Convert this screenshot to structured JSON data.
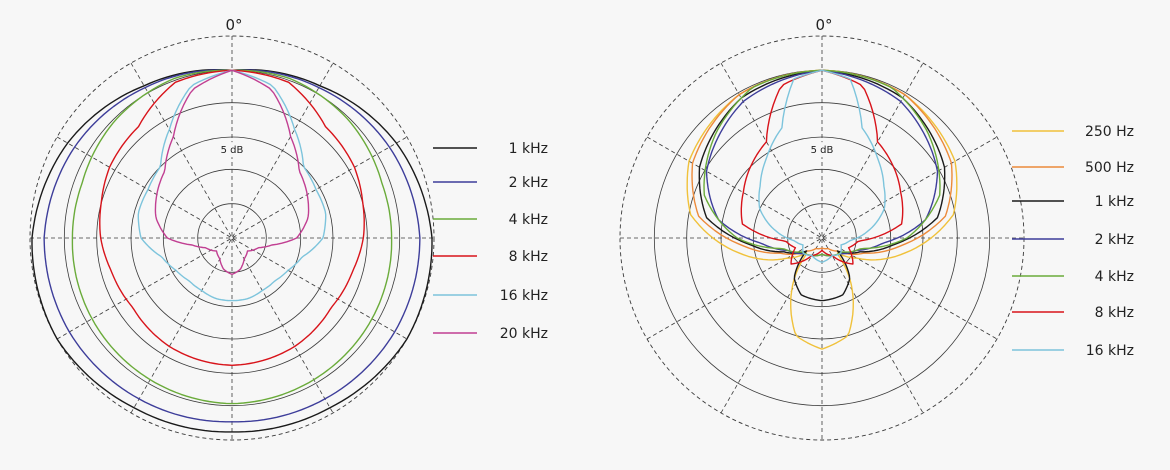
{
  "chart_data": [
    {
      "type": "polar",
      "angle_label": "0°",
      "ring_label": "5 dB",
      "legend": [
        {
          "name": "1 kHz",
          "color": "#1a1a1a"
        },
        {
          "name": "2 kHz",
          "color": "#3d3d9a"
        },
        {
          "name": "4 kHz",
          "color": "#6aab3a"
        },
        {
          "name": "8 kHz",
          "color": "#d8131a"
        },
        {
          "name": "16 kHz",
          "color": "#7dc4dc"
        },
        {
          "name": "20 kHz",
          "color": "#c13f92"
        }
      ],
      "series": [
        {
          "name": "1 kHz",
          "color": "#1a1a1a",
          "radius_by_angle": [
            [
              0,
              0.83
            ],
            [
              30,
              0.87
            ],
            [
              60,
              0.94
            ],
            [
              90,
              0.99
            ],
            [
              120,
              1.0
            ],
            [
              150,
              0.97
            ],
            [
              180,
              0.96
            ]
          ]
        },
        {
          "name": "2 kHz",
          "color": "#3d3d9a",
          "radius_by_angle": [
            [
              0,
              0.83
            ],
            [
              30,
              0.86
            ],
            [
              60,
              0.9
            ],
            [
              90,
              0.93
            ],
            [
              120,
              0.93
            ],
            [
              150,
              0.92
            ],
            [
              180,
              0.91
            ]
          ]
        },
        {
          "name": "4 kHz",
          "color": "#6aab3a",
          "radius_by_angle": [
            [
              0,
              0.83
            ],
            [
              20,
              0.84
            ],
            [
              45,
              0.82
            ],
            [
              70,
              0.79
            ],
            [
              90,
              0.79
            ],
            [
              120,
              0.8
            ],
            [
              150,
              0.81
            ],
            [
              180,
              0.82
            ]
          ]
        },
        {
          "name": "8 kHz",
          "color": "#d8131a",
          "radius_by_angle": [
            [
              0,
              0.83
            ],
            [
              20,
              0.82
            ],
            [
              40,
              0.72
            ],
            [
              60,
              0.7
            ],
            [
              75,
              0.67
            ],
            [
              90,
              0.65
            ],
            [
              105,
              0.62
            ],
            [
              125,
              0.6
            ],
            [
              150,
              0.62
            ],
            [
              180,
              0.63
            ]
          ]
        },
        {
          "name": "16 kHz",
          "color": "#7dc4dc",
          "radius_by_angle": [
            [
              0,
              0.83
            ],
            [
              15,
              0.78
            ],
            [
              30,
              0.62
            ],
            [
              45,
              0.5
            ],
            [
              60,
              0.48
            ],
            [
              75,
              0.48
            ],
            [
              90,
              0.45
            ],
            [
              105,
              0.36
            ],
            [
              120,
              0.32
            ],
            [
              135,
              0.3
            ],
            [
              150,
              0.3
            ],
            [
              165,
              0.31
            ],
            [
              180,
              0.31
            ]
          ]
        },
        {
          "name": "20 kHz",
          "color": "#c13f92",
          "radius_by_angle": [
            [
              0,
              0.83
            ],
            [
              15,
              0.76
            ],
            [
              30,
              0.58
            ],
            [
              45,
              0.47
            ],
            [
              60,
              0.43
            ],
            [
              75,
              0.39
            ],
            [
              90,
              0.32
            ],
            [
              100,
              0.2
            ],
            [
              110,
              0.14
            ],
            [
              130,
              0.1
            ],
            [
              150,
              0.12
            ],
            [
              165,
              0.16
            ],
            [
              180,
              0.18
            ]
          ]
        }
      ]
    },
    {
      "type": "polar",
      "angle_label": "0°",
      "ring_label": "5 dB",
      "legend": [
        {
          "name": "250 Hz",
          "color": "#f0c13a"
        },
        {
          "name": "500 Hz",
          "color": "#ec8a3a"
        },
        {
          "name": "1 kHz",
          "color": "#1a1a1a"
        },
        {
          "name": "2 kHz",
          "color": "#3d3d9a"
        },
        {
          "name": "4 kHz",
          "color": "#6aab3a"
        },
        {
          "name": "8 kHz",
          "color": "#d8131a"
        },
        {
          "name": "16 kHz",
          "color": "#7dc4dc"
        }
      ],
      "series": [
        {
          "name": "250 Hz",
          "color": "#f0c13a",
          "radius_by_angle": [
            [
              0,
              0.83
            ],
            [
              30,
              0.82
            ],
            [
              60,
              0.76
            ],
            [
              80,
              0.66
            ],
            [
              100,
              0.42
            ],
            [
              120,
              0.2
            ],
            [
              135,
              0.1
            ],
            [
              150,
              0.3
            ],
            [
              165,
              0.5
            ],
            [
              180,
              0.55
            ]
          ]
        },
        {
          "name": "500 Hz",
          "color": "#ec8a3a",
          "radius_by_angle": [
            [
              0,
              0.83
            ],
            [
              30,
              0.82
            ],
            [
              60,
              0.74
            ],
            [
              80,
              0.62
            ],
            [
              95,
              0.4
            ],
            [
              110,
              0.22
            ],
            [
              130,
              0.1
            ],
            [
              150,
              0.06
            ],
            [
              180,
              0.05
            ]
          ]
        },
        {
          "name": "1 kHz",
          "color": "#1a1a1a",
          "radius_by_angle": [
            [
              0,
              0.83
            ],
            [
              30,
              0.8
            ],
            [
              60,
              0.7
            ],
            [
              80,
              0.58
            ],
            [
              95,
              0.36
            ],
            [
              110,
              0.2
            ],
            [
              130,
              0.1
            ],
            [
              145,
              0.24
            ],
            [
              160,
              0.3
            ],
            [
              180,
              0.31
            ]
          ]
        },
        {
          "name": "2 kHz",
          "color": "#3d3d9a",
          "radius_by_angle": [
            [
              0,
              0.83
            ],
            [
              30,
              0.78
            ],
            [
              60,
              0.66
            ],
            [
              80,
              0.52
            ],
            [
              95,
              0.3
            ],
            [
              110,
              0.18
            ],
            [
              130,
              0.12
            ],
            [
              150,
              0.1
            ],
            [
              180,
              0.08
            ]
          ]
        },
        {
          "name": "4 kHz",
          "color": "#6aab3a",
          "radius_by_angle": [
            [
              0,
              0.83
            ],
            [
              25,
              0.82
            ],
            [
              45,
              0.74
            ],
            [
              70,
              0.62
            ],
            [
              90,
              0.42
            ],
            [
              105,
              0.2
            ],
            [
              125,
              0.12
            ],
            [
              150,
              0.1
            ],
            [
              180,
              0.08
            ]
          ]
        },
        {
          "name": "8 kHz",
          "color": "#d8131a",
          "radius_by_angle": [
            [
              0,
              0.83
            ],
            [
              15,
              0.78
            ],
            [
              30,
              0.55
            ],
            [
              45,
              0.5
            ],
            [
              60,
              0.45
            ],
            [
              80,
              0.4
            ],
            [
              95,
              0.18
            ],
            [
              110,
              0.14
            ],
            [
              130,
              0.2
            ],
            [
              150,
              0.1
            ],
            [
              180,
              0.06
            ]
          ]
        },
        {
          "name": "16 kHz",
          "color": "#7dc4dc",
          "radius_by_angle": [
            [
              0,
              0.83
            ],
            [
              10,
              0.8
            ],
            [
              20,
              0.58
            ],
            [
              35,
              0.48
            ],
            [
              50,
              0.4
            ],
            [
              65,
              0.34
            ],
            [
              80,
              0.24
            ],
            [
              95,
              0.14
            ],
            [
              110,
              0.1
            ],
            [
              130,
              0.12
            ],
            [
              150,
              0.1
            ],
            [
              180,
              0.12
            ]
          ]
        }
      ]
    }
  ]
}
